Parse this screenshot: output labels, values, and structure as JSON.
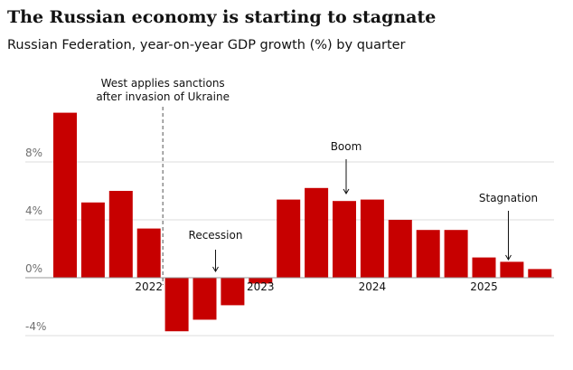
{
  "chart_data": {
    "type": "bar",
    "title": "The Russian economy is starting to stagnate",
    "subtitle": "Russian Federation, year-on-year GDP growth (%) by quarter",
    "categories": [
      null,
      null,
      null,
      "2022",
      null,
      null,
      null,
      "2023",
      null,
      null,
      null,
      "2024",
      null,
      null,
      null,
      "2025",
      null,
      null
    ],
    "values": [
      11.4,
      5.2,
      6.0,
      3.4,
      -3.7,
      -2.9,
      -1.9,
      -0.4,
      5.4,
      6.2,
      5.3,
      5.4,
      4.0,
      3.3,
      3.3,
      1.4,
      1.1,
      0.6
    ],
    "color": "#c70000",
    "ylim": [
      -5,
      12.5
    ],
    "yticks": [
      {
        "value": -4,
        "label": "-4%"
      },
      {
        "value": 0,
        "label": "0%"
      },
      {
        "value": 4,
        "label": "4%"
      },
      {
        "value": 8,
        "label": "8%"
      }
    ],
    "grid": true,
    "annotations": [
      {
        "lines": [
          "West applies sanctions",
          "after invasion of Ukraine"
        ]
      },
      {
        "lines": [
          "Recession"
        ]
      },
      {
        "lines": [
          "Boom"
        ]
      },
      {
        "lines": [
          "Stagnation"
        ]
      }
    ]
  }
}
